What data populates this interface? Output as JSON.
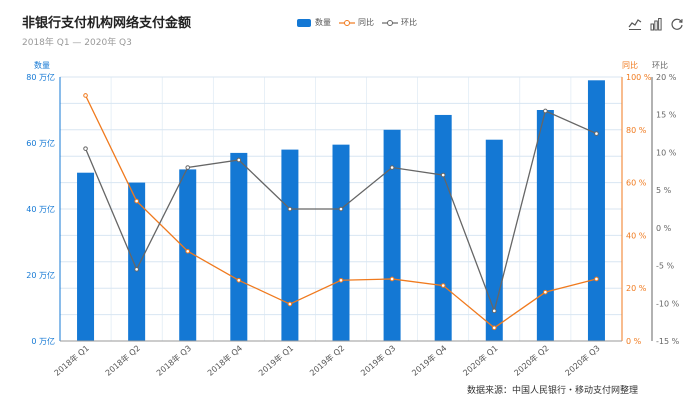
{
  "title": "非银行支付机构网络支付金额",
  "subtitle": "2018年 Q1 — 2020年 Q3",
  "legend": {
    "bar_label": "数量",
    "yoy_label": "同比",
    "qoq_label": "环比"
  },
  "toolbar": {
    "line_icon": "line-chart-icon",
    "bar_icon": "bar-chart-icon",
    "refresh_icon": "refresh-icon"
  },
  "source": "数据来源：中国人民银行・移动支付网整理",
  "colors": {
    "bar": "#1478d4",
    "yoy": "#f07a1e",
    "qoq": "#666666",
    "grid": "#d8e6f2"
  },
  "chart_data": {
    "type": "bar",
    "categories": [
      "2018年 Q1",
      "2018年 Q2",
      "2018年 Q3",
      "2018年 Q4",
      "2019年 Q1",
      "2019年 Q2",
      "2019年 Q3",
      "2019年 Q4",
      "2020年 Q1",
      "2020年 Q2",
      "2020年 Q3"
    ],
    "series": [
      {
        "name": "数量",
        "type": "bar",
        "axis": "left",
        "values": [
          51,
          48,
          52,
          57,
          58,
          59.5,
          64,
          68.5,
          61,
          70,
          79
        ]
      },
      {
        "name": "同比",
        "type": "line",
        "axis": "mid",
        "values": [
          93,
          53,
          34,
          23,
          14,
          23,
          23.5,
          21,
          5,
          18.5,
          23.5
        ]
      },
      {
        "name": "环比",
        "type": "line",
        "axis": "right",
        "values": [
          10.5,
          -5.5,
          8,
          9,
          2.5,
          2.5,
          8,
          7,
          -11,
          15.5,
          12.5
        ]
      }
    ],
    "axes": {
      "left": {
        "title": "数量",
        "unit": " 万亿",
        "min": 0,
        "max": 80,
        "ticks": [
          0,
          20,
          40,
          60,
          80
        ],
        "tick_labels": [
          "0 万亿",
          "20 万亿",
          "40 万亿",
          "60 万亿",
          "80 万亿"
        ]
      },
      "mid": {
        "title": "同比",
        "min": 0,
        "max": 100,
        "ticks": [
          0,
          20,
          40,
          60,
          80,
          100
        ],
        "tick_labels": [
          "0 %",
          "20 %",
          "40 %",
          "60 %",
          "80 %",
          "100 %"
        ]
      },
      "right": {
        "title": "环比",
        "min": -15,
        "max": 20,
        "ticks": [
          -15,
          -10,
          -5,
          0,
          5,
          10,
          15,
          20
        ],
        "tick_labels": [
          "-15 %",
          "-10 %",
          "-5 %",
          "0 %",
          "5 %",
          "10 %",
          "15 %",
          "20 %"
        ]
      }
    },
    "grid": true,
    "legend_position": "top-center"
  }
}
